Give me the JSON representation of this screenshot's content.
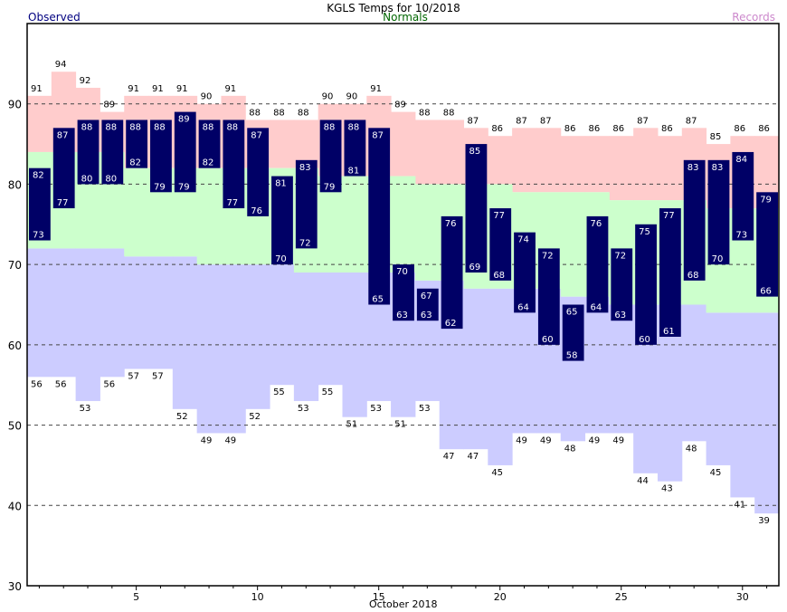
{
  "header": {
    "title": "KGLS Temps for 10/2018",
    "legend_observed": "Observed",
    "legend_normals": "Normals",
    "legend_records": "Records"
  },
  "colors": {
    "observed": "#000066",
    "observed_label": "#ffffff",
    "normals_band": "#ccffcc",
    "normals_text": "#006600",
    "record_high_band": "#ffcccc",
    "record_low_band": "#ccccff",
    "records_text": "#cc88cc",
    "observed_text": "#000080",
    "grid": "#444444"
  },
  "chart_data": {
    "type": "bar",
    "title": "KGLS Temps for 10/2018",
    "xlabel": "October 2018",
    "ylabel": "",
    "ylim": [
      30,
      100
    ],
    "yticks": [
      30,
      40,
      50,
      60,
      70,
      80,
      90
    ],
    "xticks": [
      5,
      10,
      15,
      20,
      25,
      30
    ],
    "grid": "dashed horizontal at y ticks",
    "legend": [
      "Observed",
      "Normals",
      "Records"
    ],
    "x": [
      1,
      2,
      3,
      4,
      5,
      6,
      7,
      8,
      9,
      10,
      11,
      12,
      13,
      14,
      15,
      16,
      17,
      18,
      19,
      20,
      21,
      22,
      23,
      24,
      25,
      26,
      27,
      28,
      29,
      30,
      31
    ],
    "series": [
      {
        "name": "Observed High",
        "values": [
          82,
          87,
          88,
          88,
          88,
          88,
          89,
          88,
          88,
          87,
          81,
          83,
          88,
          88,
          87,
          70,
          67,
          76,
          85,
          77,
          74,
          72,
          65,
          76,
          72,
          75,
          77,
          83,
          83,
          84,
          79
        ]
      },
      {
        "name": "Observed Low",
        "values": [
          73,
          77,
          80,
          80,
          82,
          79,
          79,
          82,
          77,
          76,
          70,
          72,
          79,
          81,
          65,
          63,
          63,
          62,
          69,
          68,
          64,
          60,
          58,
          64,
          63,
          60,
          61,
          68,
          70,
          73,
          66
        ]
      },
      {
        "name": "Record High",
        "values": [
          91,
          94,
          92,
          89,
          91,
          91,
          91,
          90,
          91,
          88,
          88,
          88,
          90,
          90,
          91,
          89,
          88,
          88,
          87,
          86,
          87,
          87,
          86,
          86,
          86,
          87,
          86,
          87,
          85,
          86,
          86
        ]
      },
      {
        "name": "Record Low",
        "values": [
          56,
          56,
          53,
          56,
          57,
          57,
          52,
          49,
          49,
          52,
          55,
          53,
          55,
          51,
          53,
          51,
          53,
          47,
          47,
          45,
          49,
          49,
          48,
          49,
          49,
          44,
          43,
          48,
          45,
          41,
          39
        ]
      },
      {
        "name": "Normal High",
        "values": [
          84,
          84,
          84,
          84,
          82,
          82,
          82,
          82,
          82,
          82,
          82,
          82,
          81,
          81,
          81,
          81,
          80,
          80,
          80,
          80,
          79,
          79,
          79,
          79,
          78,
          78,
          78,
          78,
          77,
          77,
          77
        ]
      },
      {
        "name": "Normal Low",
        "values": [
          72,
          72,
          72,
          72,
          71,
          71,
          71,
          70,
          70,
          70,
          70,
          69,
          69,
          69,
          69,
          69,
          68,
          68,
          67,
          67,
          67,
          67,
          66,
          66,
          65,
          65,
          65,
          65,
          64,
          64,
          64
        ]
      }
    ]
  }
}
